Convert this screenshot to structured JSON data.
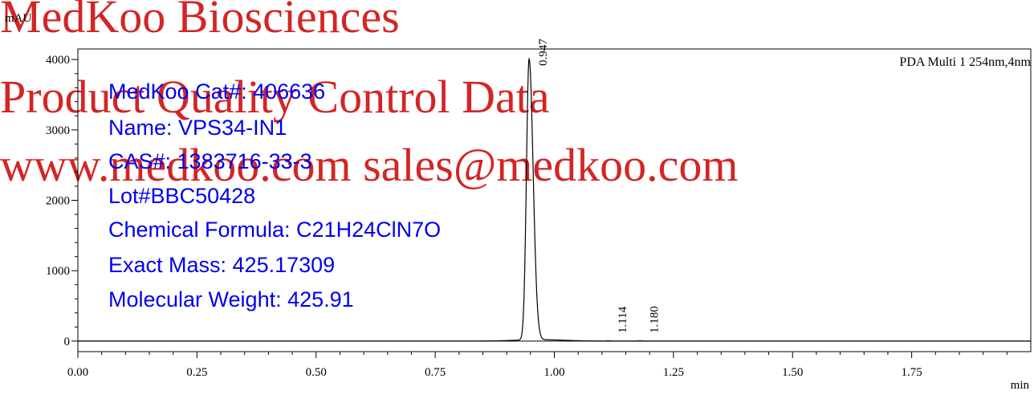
{
  "watermark": {
    "line1": "MedKoo Biosciences",
    "line2": "Product Quality Control Data",
    "line3": "www.medkoo.com    sales@medkoo.com",
    "color": "#cc0000"
  },
  "info": {
    "cat": "MedKoo Cat#: 406636",
    "name": "Name: VPS34-IN1",
    "cas": "CAS#: 1383716-33-3",
    "lot": "Lot#BBC50428",
    "formula": "Chemical Formula: C21H24ClN7O",
    "exact_mass": "Exact Mass: 425.17309",
    "mw": "Molecular Weight: 425.91",
    "color": "#0000ee"
  },
  "chart_data": {
    "type": "line",
    "trace_label": "PDA Multi 1 254nm,4nm",
    "ylabel": "mAU",
    "xlabel": "min",
    "xlim": [
      0.0,
      2.0
    ],
    "ylim": [
      -150,
      4150
    ],
    "x_ticks": [
      "0.00",
      "0.25",
      "0.50",
      "0.75",
      "1.00",
      "1.25",
      "1.50",
      "1.75"
    ],
    "x_tick_values": [
      0.0,
      0.25,
      0.5,
      0.75,
      1.0,
      1.25,
      1.5,
      1.75
    ],
    "y_ticks": [
      "0",
      "1000",
      "2000",
      "3000",
      "4000"
    ],
    "y_tick_values": [
      0,
      1000,
      2000,
      3000,
      4000
    ],
    "peaks": [
      {
        "label": "0.947",
        "rt": 0.947,
        "height": 3990
      },
      {
        "label": "1.114",
        "rt": 1.114,
        "height": 4
      },
      {
        "label": "1.180",
        "rt": 1.18,
        "height": 4
      }
    ],
    "line_color": "#000000"
  }
}
